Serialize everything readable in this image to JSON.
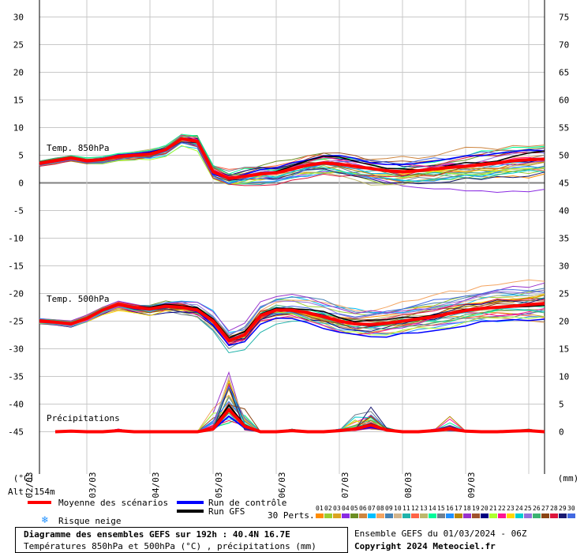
{
  "chart_data": {
    "type": "line",
    "title": "Diagramme des ensembles GEFS sur 192h : 40.4N 16.7E",
    "subtitle": "Températures 850hPa et 500hPa (°C) , précipitations (mm)",
    "left_unit": "(°C)",
    "right_unit": "(mm)",
    "altitude": "Alt. 154m",
    "left_ticks": [
      30,
      25,
      20,
      15,
      10,
      5,
      0,
      -5,
      -10,
      -15,
      -20,
      -25,
      -30,
      -35,
      -40,
      -45
    ],
    "right_ticks": [
      75,
      70,
      65,
      60,
      55,
      50,
      45,
      40,
      35,
      30,
      25,
      20,
      15,
      10,
      5,
      0
    ],
    "x_ticks": [
      "02/03",
      "03/03",
      "04/03",
      "05/03",
      "06/03",
      "07/03",
      "08/03",
      "09/03"
    ],
    "x_range_hours": [
      6,
      198
    ],
    "ylim": [
      -54,
      31
    ],
    "label_850": "Temp. 850hPa",
    "label_500": "Temp. 500hPa",
    "label_precip": "Précipitations",
    "t850_mean": {
      "hours": [
        6,
        12,
        18,
        24,
        30,
        36,
        42,
        48,
        54,
        60,
        66,
        72,
        78,
        84,
        90,
        96,
        102,
        108,
        114,
        120,
        126,
        132,
        138,
        144,
        150,
        156,
        162,
        168,
        174,
        180,
        186,
        192,
        198
      ],
      "values": [
        3.5,
        4,
        4.5,
        4,
        4.2,
        4.8,
        5,
        5.2,
        6,
        8,
        7.5,
        2,
        0.8,
        1.2,
        1.6,
        1.8,
        2.5,
        3.2,
        3.6,
        3.4,
        3,
        2.6,
        2.2,
        2,
        2.2,
        2.5,
        2.8,
        3,
        3.3,
        3.6,
        4,
        4.2,
        4.3
      ]
    },
    "t500_mean": {
      "hours": [
        6,
        12,
        18,
        24,
        30,
        36,
        42,
        48,
        54,
        60,
        66,
        72,
        78,
        84,
        90,
        96,
        102,
        108,
        114,
        120,
        126,
        132,
        138,
        144,
        150,
        156,
        162,
        168,
        174,
        180,
        186,
        192,
        198
      ],
      "values": [
        -25,
        -25.2,
        -25.5,
        -24.5,
        -23,
        -22,
        -22.5,
        -22.8,
        -22.3,
        -22.5,
        -23,
        -25,
        -28.5,
        -27.5,
        -24,
        -23,
        -23,
        -23.5,
        -24.2,
        -25,
        -25.5,
        -25.6,
        -25.4,
        -25,
        -24.6,
        -24.2,
        -23.6,
        -23.1,
        -22.7,
        -22.5,
        -22.3,
        -22,
        -21.8
      ]
    },
    "precip_mean": {
      "hours": [
        12,
        18,
        24,
        30,
        36,
        42,
        48,
        54,
        60,
        66,
        72,
        78,
        84,
        90,
        96,
        102,
        108,
        114,
        120,
        126,
        132,
        138,
        144,
        150,
        156,
        162,
        168,
        174,
        180,
        186,
        192,
        198
      ],
      "values": [
        0,
        0.1,
        0,
        0,
        0.2,
        0,
        0,
        0,
        0,
        0,
        0.5,
        4,
        1,
        0,
        0,
        0.2,
        0,
        0,
        0.2,
        0.5,
        1.2,
        0.3,
        0,
        0,
        0.2,
        0.5,
        0.1,
        0,
        0,
        0.1,
        0.2,
        0
      ]
    },
    "series": [
      {
        "name": "Moyenne des scénarios",
        "color": "#ff0000"
      },
      {
        "name": "Run de contrôle",
        "color": "#0000ff"
      },
      {
        "name": "Run GFS",
        "color": "#000000"
      }
    ],
    "snow_label": "Risque neige",
    "perts_label": "30 Perts.",
    "pert_numbers": [
      "01",
      "02",
      "03",
      "04",
      "05",
      "06",
      "07",
      "08",
      "09",
      "10",
      "11",
      "12",
      "13",
      "14",
      "15",
      "16",
      "17",
      "18",
      "19",
      "20",
      "21",
      "22",
      "23",
      "24",
      "25",
      "26",
      "27",
      "28",
      "29",
      "30"
    ],
    "pert_colors": [
      "#ff8c00",
      "#9acd32",
      "#daa520",
      "#8a2be2",
      "#6b8e23",
      "#cd853f",
      "#00bfff",
      "#f4a460",
      "#4682b4",
      "#d2b48c",
      "#20b2aa",
      "#ff6347",
      "#bdb76b",
      "#00fa9a",
      "#708090",
      "#1e90ff",
      "#b8860b",
      "#9932cc",
      "#a0522d",
      "#000080",
      "#adff2f",
      "#ff1493",
      "#ffd700",
      "#00ced1",
      "#9370db",
      "#3cb371",
      "#8b4513",
      "#dc143c",
      "#191970",
      "#4169e1"
    ],
    "ensemble_info": "Ensemble GEFS du 01/03/2024 - 06Z",
    "copyright": "Copyright 2024 Meteociel.fr"
  }
}
